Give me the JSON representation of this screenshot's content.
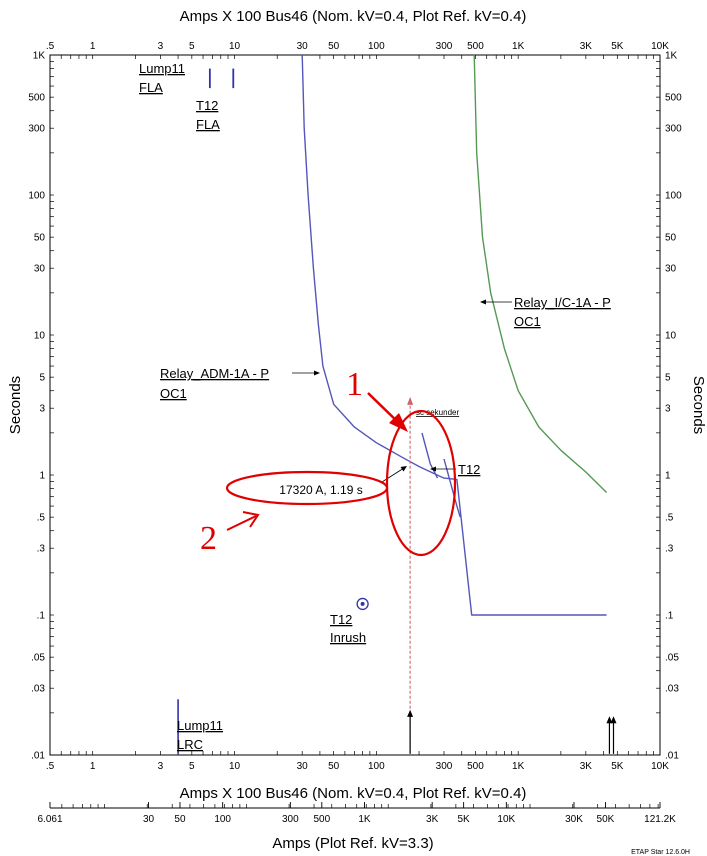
{
  "chart_data": {
    "type": "line",
    "title_top": "Amps  X  100   Bus46 (Nom. kV=0.4, Plot Ref. kV=0.4)",
    "title_bottom": "Amps  X  100   Bus46 (Nom. kV=0.4, Plot Ref. kV=0.4)",
    "xlabel": "Amps (Plot Ref. kV=3.3)",
    "ylabel_left": "Seconds",
    "ylabel_right": "Seconds",
    "x_scale": "log",
    "y_scale": "log",
    "xlim": [
      0.5,
      10000
    ],
    "ylim": [
      0.01,
      1000
    ],
    "x_ticks": [
      {
        "v": 0.5,
        "label": ".5"
      },
      {
        "v": 1,
        "label": "1"
      },
      {
        "v": 3,
        "label": "3"
      },
      {
        "v": 5,
        "label": "5"
      },
      {
        "v": 10,
        "label": "10"
      },
      {
        "v": 30,
        "label": "30"
      },
      {
        "v": 50,
        "label": "50"
      },
      {
        "v": 100,
        "label": "100"
      },
      {
        "v": 300,
        "label": "300"
      },
      {
        "v": 500,
        "label": "500"
      },
      {
        "v": 1000,
        "label": "1K"
      },
      {
        "v": 3000,
        "label": "3K"
      },
      {
        "v": 5000,
        "label": "5K"
      },
      {
        "v": 10000,
        "label": "10K"
      }
    ],
    "y_ticks": [
      {
        "v": 1000,
        "label": "1K"
      },
      {
        "v": 500,
        "label": "500"
      },
      {
        "v": 300,
        "label": "300"
      },
      {
        "v": 100,
        "label": "100"
      },
      {
        "v": 50,
        "label": "50"
      },
      {
        "v": 30,
        "label": "30"
      },
      {
        "v": 10,
        "label": "10"
      },
      {
        "v": 5,
        "label": "5"
      },
      {
        "v": 3,
        "label": "3"
      },
      {
        "v": 1,
        "label": "1"
      },
      {
        "v": 0.5,
        "label": ".5"
      },
      {
        "v": 0.3,
        "label": ".3"
      },
      {
        "v": 0.1,
        "label": ".1"
      },
      {
        "v": 0.05,
        "label": ".05"
      },
      {
        "v": 0.03,
        "label": ".03"
      },
      {
        "v": 0.01,
        "label": ".01"
      }
    ],
    "kv33_ticks": [
      {
        "v": 0.5,
        "label": "6.061"
      },
      {
        "v": 2.475,
        "label": "30"
      },
      {
        "v": 4.125,
        "label": "50"
      },
      {
        "v": 8.25,
        "label": "100"
      },
      {
        "v": 24.75,
        "label": "300"
      },
      {
        "v": 41.25,
        "label": "500"
      },
      {
        "v": 82.5,
        "label": "1K"
      },
      {
        "v": 247.5,
        "label": "3K"
      },
      {
        "v": 412.5,
        "label": "5K"
      },
      {
        "v": 825,
        "label": "10K"
      },
      {
        "v": 2475,
        "label": "30K"
      },
      {
        "v": 4125,
        "label": "50K"
      },
      {
        "v": 10000,
        "label": "121.2K"
      }
    ],
    "series": [
      {
        "name": "Relay_ADM-1A - P OC1",
        "color": "#5555bb",
        "points": [
          [
            30,
            1000
          ],
          [
            31,
            300
          ],
          [
            33,
            100
          ],
          [
            36,
            30
          ],
          [
            39,
            12
          ],
          [
            42,
            6
          ],
          [
            50,
            3.2
          ],
          [
            70,
            2.2
          ],
          [
            100,
            1.7
          ],
          [
            150,
            1.35
          ],
          [
            200,
            1.15
          ],
          [
            280,
            0.98
          ],
          [
            300,
            0.95
          ],
          [
            370,
            0.93
          ],
          [
            470,
            0.1
          ],
          [
            4200,
            0.1
          ]
        ]
      },
      {
        "name": "Relay_I/C-1A - P OC1",
        "color": "#559955",
        "points": [
          [
            490,
            1000
          ],
          [
            510,
            200
          ],
          [
            560,
            50
          ],
          [
            640,
            20
          ],
          [
            800,
            8
          ],
          [
            1000,
            4
          ],
          [
            1400,
            2.2
          ],
          [
            2000,
            1.5
          ],
          [
            3000,
            1.05
          ],
          [
            4200,
            0.75
          ]
        ]
      },
      {
        "name": "T12",
        "color": "#5555bb",
        "points": [
          [
            210,
            2.0
          ],
          [
            240,
            1.2
          ],
          [
            270,
            0.95
          ]
        ]
      },
      {
        "name": "T12 steep",
        "color": "#5555bb",
        "points": [
          [
            300,
            1.3
          ],
          [
            370,
            0.6
          ],
          [
            390,
            0.5
          ]
        ]
      }
    ],
    "fla_marks": [
      {
        "x": 6.7,
        "y_from": 800,
        "y_to": 580
      },
      {
        "x": 9.8,
        "y_from": 800,
        "y_to": 580
      }
    ],
    "lrc_mark": {
      "x": 4,
      "y_from": 0.025,
      "y_to": 0.0102
    },
    "inrush_point": {
      "x": 80,
      "y": 0.12
    },
    "fault_lines": [
      {
        "x": 173,
        "y_from": 0.02,
        "y_to": 0.0102,
        "arrow": true
      },
      {
        "x": 4400,
        "y_from": 0.018,
        "y_to": 0.0102,
        "arrow": true
      },
      {
        "x": 4700,
        "y_from": 0.018,
        "y_to": 0.0102,
        "arrow": true
      }
    ],
    "dashed_line": {
      "x": 173,
      "y_from": 0.0102,
      "y_to": 3.5,
      "color": "#cc6666"
    },
    "labels": {
      "lump_fla_1": "Lump11",
      "lump_fla_2": "FLA",
      "t12_fla_1": "T12",
      "t12_fla_2": "FLA",
      "relay_adm_1": "Relay_ADM-1A - P",
      "relay_adm_2": "OC1",
      "relay_ic_1": "Relay_I/C-1A - P",
      "relay_ic_2": "OC1",
      "t12": "T12",
      "t12_inrush_1": "T12",
      "t12_inrush_2": "Inrush",
      "lump_lrc_1": "Lump11",
      "lump_lrc_2": "LRC",
      "sekunder": "sc sekunder",
      "callout": "17320 A, 1.19 s",
      "num1": "1",
      "num2": "2",
      "footer": "ETAP Star 12.6.0H"
    },
    "annotation_color": "#e00000"
  }
}
